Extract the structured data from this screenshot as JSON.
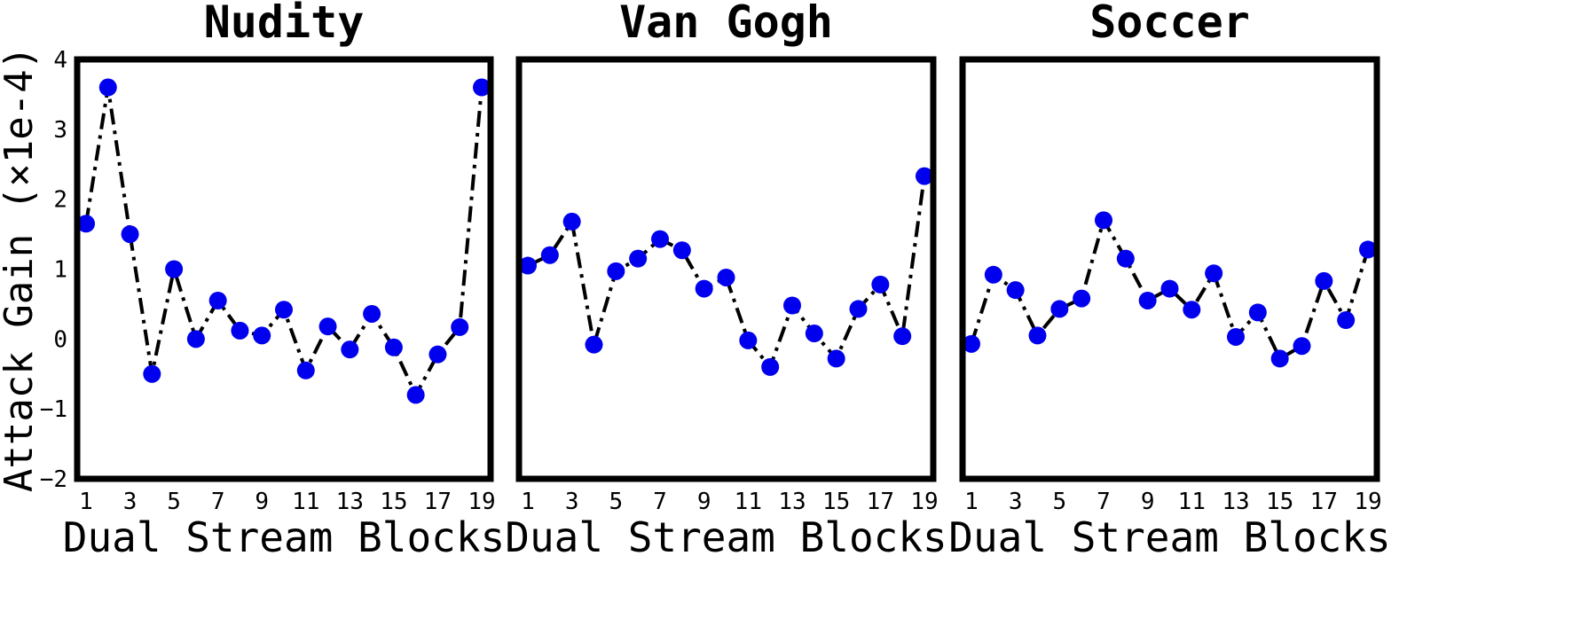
{
  "chart_data": [
    {
      "type": "line",
      "title": "Nudity",
      "xlabel": "Dual Stream Blocks",
      "ylabel": "Attack Gain (×1e-4)",
      "ylim": [
        -2,
        4
      ],
      "xlim": [
        1,
        19
      ],
      "xticks": [
        "1",
        "3",
        "5",
        "7",
        "9",
        "11",
        "13",
        "15",
        "17",
        "19"
      ],
      "yticks": [
        "4",
        "3",
        "2",
        "1",
        "0",
        "−1",
        "−2"
      ],
      "line_style": "dash-dot",
      "line_color": "#000000",
      "marker_color": "#0000ee",
      "x": [
        1,
        2,
        3,
        4,
        5,
        6,
        7,
        8,
        9,
        10,
        11,
        12,
        13,
        14,
        15,
        16,
        17,
        18,
        19
      ],
      "values": [
        1.65,
        3.6,
        1.5,
        -0.5,
        1.0,
        0.0,
        0.55,
        0.12,
        0.05,
        0.42,
        -0.45,
        0.18,
        -0.15,
        0.36,
        -0.12,
        -0.8,
        -0.22,
        0.17,
        3.6
      ]
    },
    {
      "type": "line",
      "title": "Van Gogh",
      "xlabel": "Dual Stream Blocks",
      "ylabel": "",
      "ylim": [
        -2,
        4
      ],
      "xlim": [
        1,
        19
      ],
      "xticks": [
        "1",
        "3",
        "5",
        "7",
        "9",
        "11",
        "13",
        "15",
        "17",
        "19"
      ],
      "yticks": [],
      "line_style": "dash-dot",
      "line_color": "#000000",
      "marker_color": "#0000ee",
      "x": [
        1,
        2,
        3,
        4,
        5,
        6,
        7,
        8,
        9,
        10,
        11,
        12,
        13,
        14,
        15,
        16,
        17,
        18,
        19
      ],
      "values": [
        1.05,
        1.2,
        1.68,
        -0.08,
        0.97,
        1.15,
        1.43,
        1.27,
        0.72,
        0.88,
        -0.02,
        -0.4,
        0.48,
        0.08,
        -0.28,
        0.43,
        0.78,
        0.04,
        2.33
      ]
    },
    {
      "type": "line",
      "title": "Soccer",
      "xlabel": "Dual Stream Blocks",
      "ylabel": "",
      "ylim": [
        -2,
        4
      ],
      "xlim": [
        1,
        19
      ],
      "xticks": [
        "1",
        "3",
        "5",
        "7",
        "9",
        "11",
        "13",
        "15",
        "17",
        "19"
      ],
      "yticks": [],
      "line_style": "dash-dot",
      "line_color": "#000000",
      "marker_color": "#0000ee",
      "x": [
        1,
        2,
        3,
        4,
        5,
        6,
        7,
        8,
        9,
        10,
        11,
        12,
        13,
        14,
        15,
        16,
        17,
        18,
        19
      ],
      "values": [
        -0.07,
        0.92,
        0.7,
        0.05,
        0.43,
        0.58,
        1.7,
        1.15,
        0.55,
        0.72,
        0.42,
        0.94,
        0.03,
        0.38,
        -0.28,
        -0.1,
        0.83,
        0.27,
        1.28
      ]
    }
  ]
}
